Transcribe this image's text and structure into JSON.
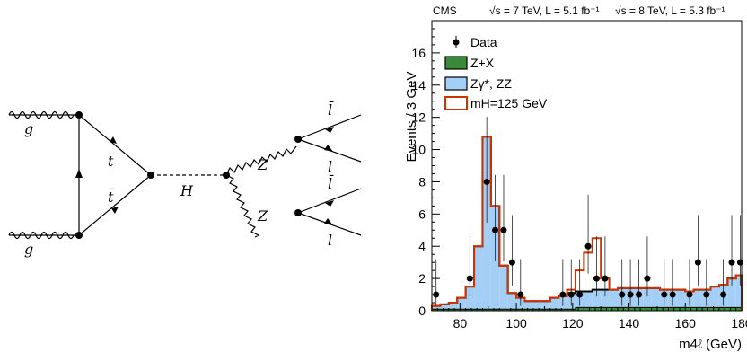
{
  "diagram": {
    "labels": {
      "gluon_top": "g",
      "gluon_bottom": "g",
      "top_quark": "t",
      "antitop_quark": "t̄",
      "higgs": "H",
      "z_upper": "Z",
      "z_lower": "Z",
      "antilepton_upper": "l̄",
      "lepton_upper": "l",
      "antilepton_lower": "l̄",
      "lepton_lower": "l"
    }
  },
  "plot": {
    "experiment": "CMS",
    "lumi_7tev": "√s = 7 TeV, L = 5.1 fb⁻¹",
    "lumi_8tev": "√s = 8 TeV, L = 5.3 fb⁻¹",
    "ylabel": "Events / 3 GeV",
    "xlabel": "m4ℓ (GeV)",
    "legend": {
      "data": "Data",
      "zx": "Z+X",
      "zz": "Zγ*, ZZ",
      "signal": "mH=125 GeV"
    }
  },
  "chart_data": {
    "type": "bar",
    "xlim": [
      70,
      180
    ],
    "ylim": [
      0,
      18
    ],
    "bin_width": 3,
    "x_ticks": [
      80,
      100,
      120,
      140,
      160,
      180
    ],
    "y_ticks": [
      0,
      2,
      4,
      6,
      8,
      10,
      12,
      14,
      16
    ],
    "colors": {
      "zx": "#3a8a3a",
      "zz": "#a3cef5",
      "signal": "#cc3300",
      "data": "#000000"
    },
    "bin_edges": [
      70,
      73,
      76,
      79,
      82,
      85,
      88,
      91,
      94,
      97,
      100,
      103,
      106,
      109,
      112,
      115,
      118,
      121,
      124,
      127,
      130,
      133,
      136,
      139,
      142,
      145,
      148,
      151,
      154,
      157,
      160,
      163,
      166,
      169,
      172,
      175,
      178,
      180
    ],
    "series": [
      {
        "name": "Z+X",
        "kind": "stack",
        "values": [
          0.1,
          0.1,
          0.1,
          0.1,
          0.1,
          0.1,
          0.1,
          0.1,
          0.1,
          0.1,
          0.1,
          0.1,
          0.1,
          0.1,
          0.1,
          0.1,
          0.1,
          0.2,
          0.2,
          0.2,
          0.2,
          0.2,
          0.2,
          0.2,
          0.2,
          0.2,
          0.2,
          0.2,
          0.2,
          0.2,
          0.2,
          0.2,
          0.2,
          0.2,
          0.2,
          0.2,
          0.2
        ]
      },
      {
        "name": "Zγ*, ZZ",
        "kind": "stack_total",
        "values": [
          0.3,
          0.4,
          0.5,
          0.8,
          1.5,
          4.0,
          10.8,
          6.5,
          2.8,
          1.1,
          0.8,
          0.6,
          0.6,
          0.6,
          0.8,
          0.9,
          1.1,
          1.2,
          1.2,
          1.3,
          1.3,
          1.3,
          1.4,
          1.4,
          1.4,
          1.4,
          1.4,
          1.3,
          1.3,
          1.3,
          1.2,
          1.3,
          1.3,
          1.5,
          1.6,
          2.0,
          2.2
        ]
      },
      {
        "name": "mH=125 GeV",
        "kind": "signal_total",
        "values": [
          0.3,
          0.4,
          0.5,
          0.8,
          1.5,
          4.0,
          10.8,
          6.5,
          2.8,
          1.1,
          0.8,
          0.6,
          0.6,
          0.6,
          0.8,
          0.9,
          1.3,
          2.5,
          3.6,
          4.5,
          2.0,
          1.3,
          1.4,
          1.4,
          1.4,
          1.4,
          1.4,
          1.3,
          1.3,
          1.3,
          1.2,
          1.3,
          1.3,
          1.5,
          1.6,
          2.0,
          2.2
        ]
      },
      {
        "name": "Data",
        "kind": "points",
        "x": [
          71.5,
          83.5,
          89.5,
          92.5,
          95.5,
          98.5,
          101.5,
          116.5,
          119.5,
          122.5,
          125.5,
          128.5,
          131.5,
          137.5,
          140.5,
          143.5,
          146.5,
          152.5,
          155.5,
          161.5,
          164.5,
          167.5,
          173.5,
          176.5,
          179.5
        ],
        "y": [
          1,
          2,
          8,
          5,
          5,
          3,
          1,
          1,
          1,
          1,
          4,
          2,
          2,
          1,
          1,
          1,
          2,
          1,
          1,
          1,
          3,
          1,
          1,
          3,
          3
        ]
      }
    ]
  }
}
